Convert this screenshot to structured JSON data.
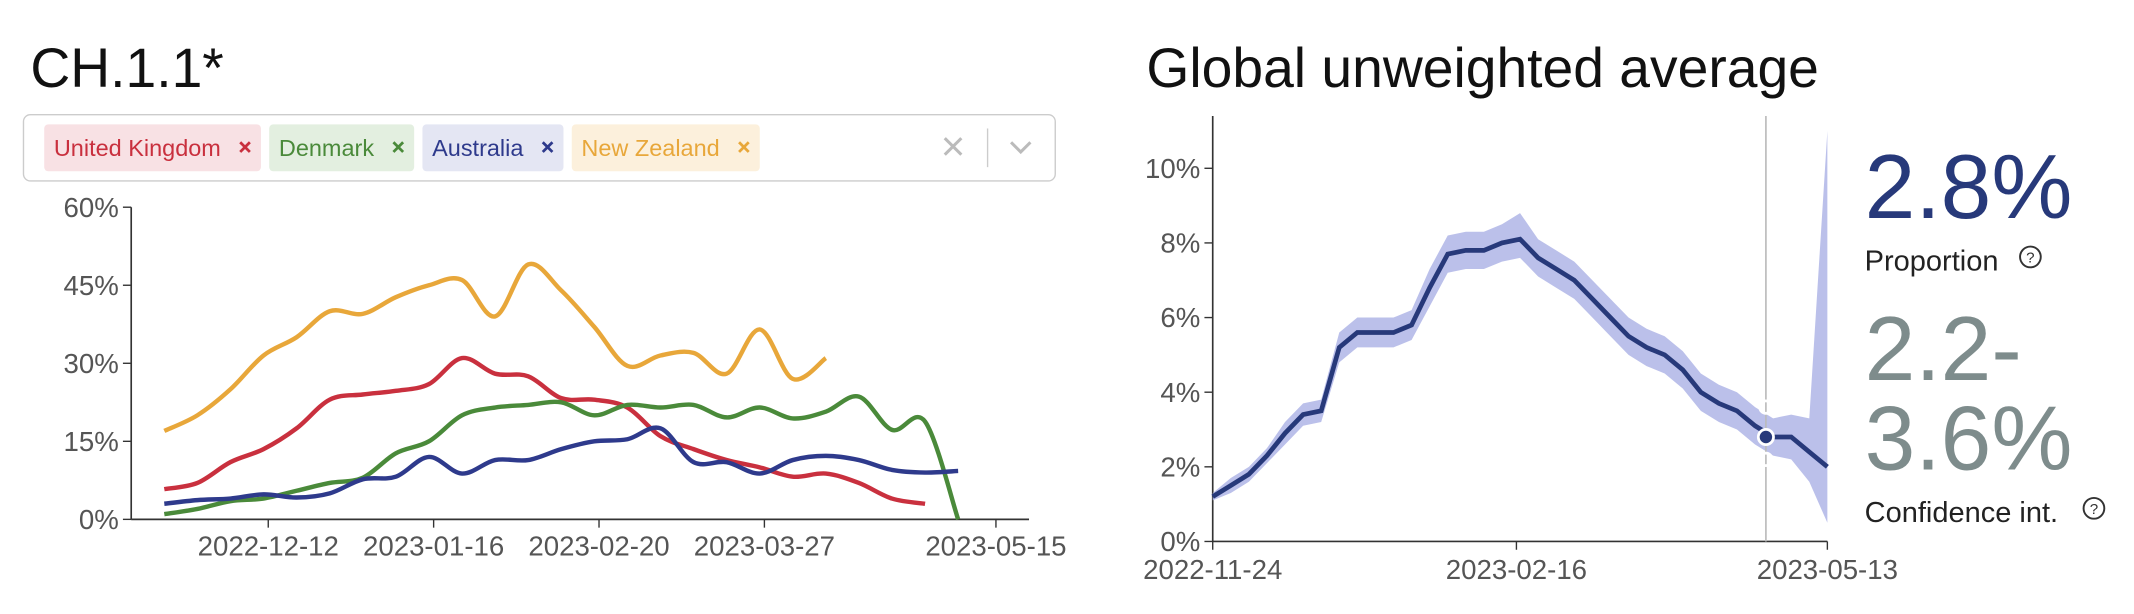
{
  "chart_data": [
    {
      "type": "line",
      "title": "CH.1.1*",
      "x": [
        "2022-11-20",
        "2022-11-27",
        "2022-12-04",
        "2022-12-11",
        "2022-12-18",
        "2022-12-25",
        "2023-01-01",
        "2023-01-08",
        "2023-01-15",
        "2023-01-22",
        "2023-01-29",
        "2023-02-05",
        "2023-02-12",
        "2023-02-19",
        "2023-02-26",
        "2023-03-05",
        "2023-03-12",
        "2023-03-19",
        "2023-03-26",
        "2023-04-02",
        "2023-04-09",
        "2023-04-16",
        "2023-04-23",
        "2023-04-30",
        "2023-05-07"
      ],
      "series": [
        {
          "name": "United Kingdom",
          "color": "#c9303e",
          "chip_color": "#f8e1e4",
          "values": [
            5.8,
            7,
            11,
            13.5,
            17.5,
            23,
            24,
            24.7,
            26,
            31,
            28,
            27.5,
            23.3,
            23,
            21.5,
            16,
            13.5,
            11.4,
            10,
            8.2,
            8.8,
            7,
            4,
            3,
            null
          ]
        },
        {
          "name": "Denmark",
          "color": "#4a8a3a",
          "chip_color": "#e3efe0",
          "values": [
            1,
            2,
            3.5,
            4,
            5.5,
            7,
            8,
            12.7,
            15,
            20,
            21.5,
            22,
            22.5,
            20,
            22,
            21.5,
            22,
            19.6,
            21.5,
            19.4,
            20.7,
            23.6,
            17.2,
            18.8,
            0
          ]
        },
        {
          "name": "Australia",
          "color": "#2e3a8c",
          "chip_color": "#e4e6f3",
          "values": [
            3,
            3.7,
            4,
            4.8,
            4.2,
            5,
            7.7,
            8.2,
            12,
            8.8,
            11.4,
            11.4,
            13.5,
            15,
            15.4,
            17.5,
            11,
            11,
            8.8,
            11.4,
            12.2,
            11.4,
            9.5,
            9,
            9.3
          ]
        },
        {
          "name": "New Zealand",
          "color": "#e8a73a",
          "chip_color": "#fcf0dc",
          "values": [
            17,
            20,
            25,
            31.5,
            35,
            40,
            39.5,
            42.7,
            45,
            46,
            39,
            49,
            44,
            37,
            29.5,
            31.5,
            32,
            28,
            36.5,
            27,
            31,
            null,
            null,
            null,
            null
          ]
        }
      ],
      "xlim": [
        "2022-11-13",
        "2023-05-22"
      ],
      "xticks": [
        "2022-12-12",
        "2023-01-16",
        "2023-02-20",
        "2023-03-27",
        "2023-05-15"
      ],
      "ylim": [
        0,
        60
      ],
      "yticks": [
        {
          "value": 0,
          "label": "0%"
        },
        {
          "value": 15,
          "label": "15%"
        },
        {
          "value": 30,
          "label": "30%"
        },
        {
          "value": 45,
          "label": "45%"
        },
        {
          "value": 60,
          "label": "60%"
        }
      ]
    },
    {
      "type": "band-line",
      "title": "Global unweighted average",
      "color": "#27397a",
      "band_color": "#b4b9e8",
      "x": [
        "2022-11-24",
        "2022-11-29",
        "2022-12-04",
        "2022-12-09",
        "2022-12-14",
        "2022-12-19",
        "2022-12-24",
        "2022-12-29",
        "2023-01-03",
        "2023-01-08",
        "2023-01-13",
        "2023-01-18",
        "2023-01-23",
        "2023-01-28",
        "2023-02-02",
        "2023-02-07",
        "2023-02-12",
        "2023-02-17",
        "2023-02-22",
        "2023-02-27",
        "2023-03-04",
        "2023-03-09",
        "2023-03-14",
        "2023-03-19",
        "2023-03-24",
        "2023-03-29",
        "2023-04-03",
        "2023-04-08",
        "2023-04-13",
        "2023-04-18",
        "2023-04-23",
        "2023-04-28",
        "2023-05-03",
        "2023-05-08",
        "2023-05-13"
      ],
      "values": [
        1.2,
        1.5,
        1.8,
        2.3,
        2.9,
        3.4,
        3.5,
        5.2,
        5.6,
        5.6,
        5.6,
        5.8,
        6.8,
        7.7,
        7.8,
        7.8,
        8.0,
        8.1,
        7.6,
        7.3,
        7.0,
        6.5,
        6.0,
        5.5,
        5.2,
        5.0,
        4.6,
        4.0,
        3.7,
        3.5,
        3.1,
        2.8,
        2.8,
        2.4,
        2.0
      ],
      "lower": [
        1.1,
        1.3,
        1.6,
        2.1,
        2.6,
        3.1,
        3.2,
        4.8,
        5.2,
        5.2,
        5.2,
        5.4,
        6.3,
        7.2,
        7.3,
        7.3,
        7.5,
        7.6,
        7.1,
        6.8,
        6.5,
        6.0,
        5.5,
        5.0,
        4.7,
        4.5,
        4.1,
        3.5,
        3.2,
        3.0,
        2.6,
        2.3,
        2.2,
        1.6,
        0.5
      ],
      "upper": [
        1.3,
        1.7,
        2.0,
        2.5,
        3.2,
        3.7,
        3.8,
        5.6,
        6.0,
        6.0,
        6.0,
        6.2,
        7.3,
        8.2,
        8.3,
        8.3,
        8.5,
        8.8,
        8.1,
        7.8,
        7.5,
        7.0,
        6.5,
        6.0,
        5.7,
        5.5,
        5.1,
        4.5,
        4.2,
        4.0,
        3.6,
        3.3,
        3.4,
        3.3,
        11.0
      ],
      "xlim": [
        "2022-11-24",
        "2023-05-13"
      ],
      "xticks": [
        "2022-11-24",
        "2023-02-16",
        "2023-05-13"
      ],
      "ylim": [
        0,
        11.4
      ],
      "yticks": [
        {
          "value": 0,
          "label": "0%"
        },
        {
          "value": 2,
          "label": "2%"
        },
        {
          "value": 4,
          "label": "4%"
        },
        {
          "value": 6,
          "label": "6%"
        },
        {
          "value": 8,
          "label": "8%"
        },
        {
          "value": 10,
          "label": "10%"
        }
      ],
      "highlight": {
        "x": "2023-04-26",
        "value": 2.8,
        "value_label": "2.8%",
        "lower": 2.2,
        "upper": 3.6,
        "interval_label": [
          "2.2-",
          "3.6%"
        ],
        "value_caption": "Proportion",
        "interval_caption": "Confidence int."
      }
    }
  ]
}
